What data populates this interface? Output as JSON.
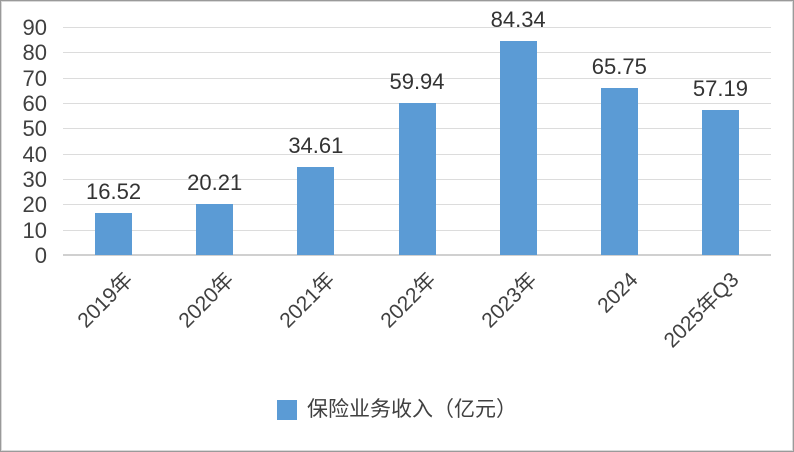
{
  "chart_data": {
    "type": "bar",
    "title": "",
    "categories": [
      "2019年",
      "2020年",
      "2021年",
      "2022年",
      "2023年",
      "2024",
      "2025年Q3"
    ],
    "values": [
      16.52,
      20.21,
      34.61,
      59.94,
      84.34,
      65.75,
      57.19
    ],
    "data_labels": [
      "16.52",
      "20.21",
      "34.61",
      "59.94",
      "84.34",
      "65.75",
      "57.19"
    ],
    "series_name": "保险业务收入（亿元）",
    "legend": {
      "label": "保险业务收入（亿元）",
      "position": "bottom",
      "marker_color": "#5B9BD5"
    },
    "xlabel": "",
    "ylabel": "",
    "yaxis": {
      "min": 0,
      "max": 90,
      "tick_step": 10,
      "ticks": [
        0,
        10,
        20,
        30,
        40,
        50,
        60,
        70,
        80,
        90
      ]
    },
    "grid": true,
    "x_tick_rotation_deg": 45,
    "colors": {
      "bar": "#5B9BD5",
      "gridline": "#DCDCDC",
      "axis_line": "#D0D0D0",
      "text": "#404040"
    }
  }
}
